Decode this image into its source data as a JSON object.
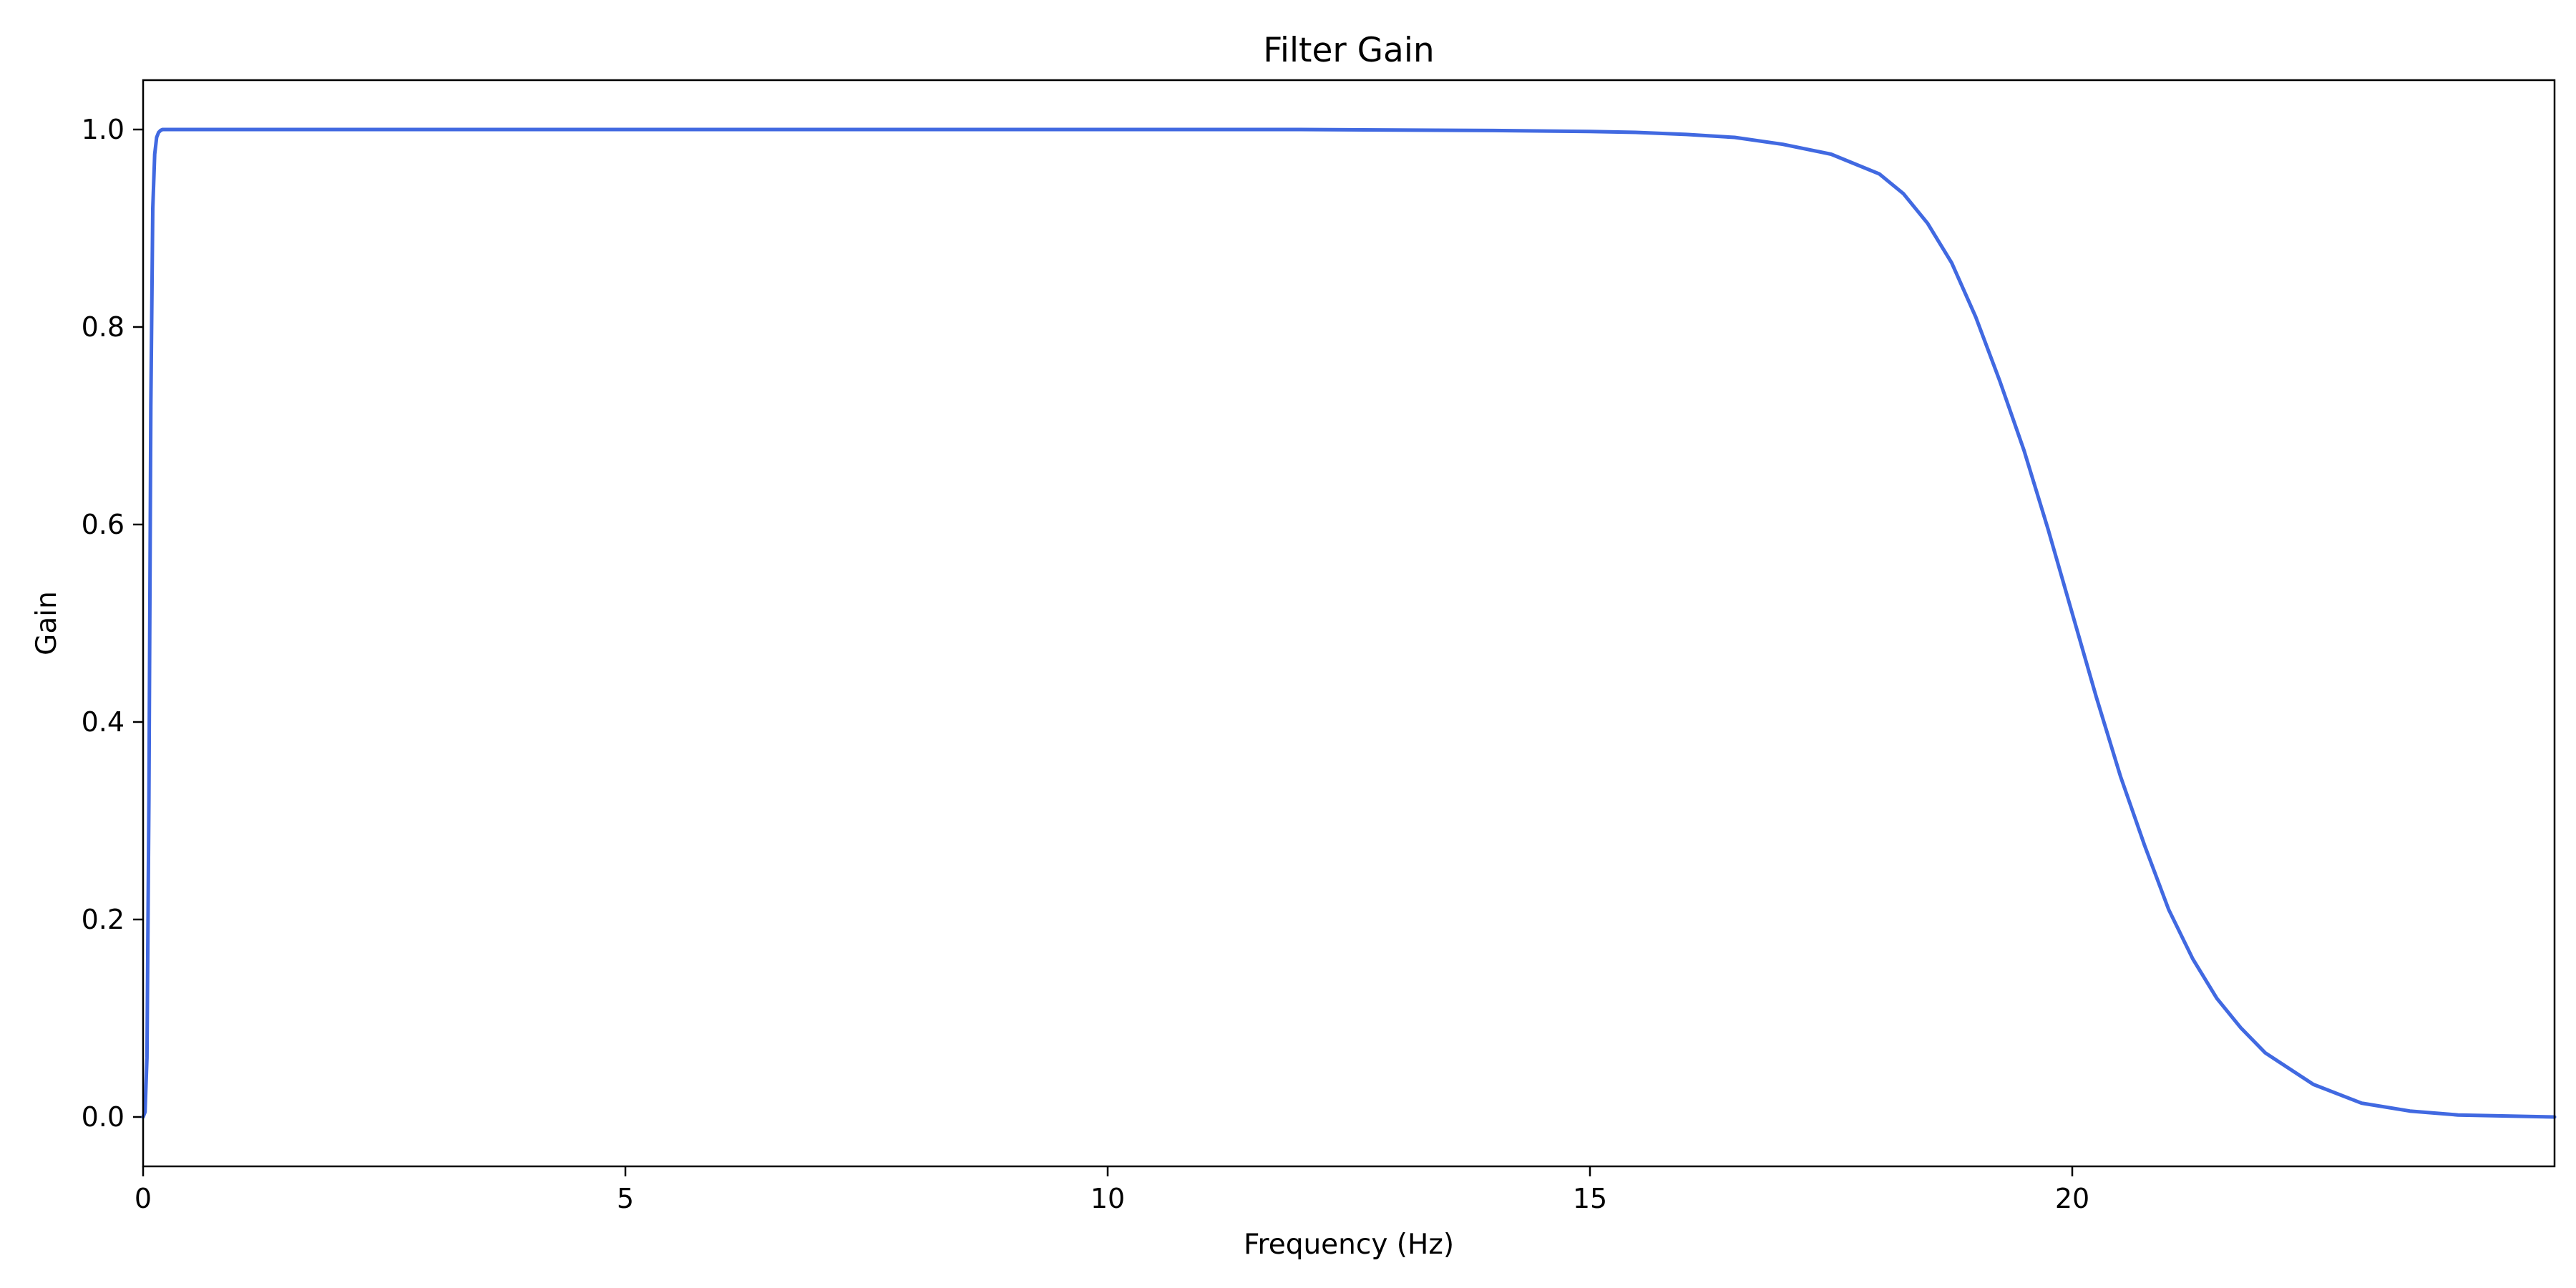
{
  "chart_data": {
    "type": "line",
    "title": "Filter Gain",
    "xlabel": "Frequency (Hz)",
    "ylabel": "Gain",
    "xlim": [
      0,
      25
    ],
    "ylim": [
      -0.05,
      1.05
    ],
    "x_ticks": [
      0,
      5,
      10,
      15,
      20
    ],
    "x_tick_labels": [
      "0",
      "5",
      "10",
      "15",
      "20"
    ],
    "y_ticks": [
      0.0,
      0.2,
      0.4,
      0.6,
      0.8,
      1.0
    ],
    "y_tick_labels": [
      "0.0",
      "0.2",
      "0.4",
      "0.6",
      "0.8",
      "1.0"
    ],
    "grid": false,
    "legend": "none",
    "series": [
      {
        "color": "#4169E1",
        "x": [
          0,
          0.02,
          0.04,
          0.06,
          0.08,
          0.1,
          0.12,
          0.14,
          0.16,
          0.18,
          0.2,
          0.25,
          0.3,
          0.5,
          1,
          2,
          4,
          6,
          8,
          10,
          12,
          14,
          15,
          15.5,
          16,
          16.5,
          17,
          17.5,
          18,
          18.25,
          18.5,
          18.75,
          19,
          19.25,
          19.5,
          19.75,
          20,
          20.25,
          20.5,
          20.75,
          21,
          21.25,
          21.5,
          21.75,
          22,
          22.5,
          23,
          23.5,
          24,
          24.5,
          25
        ],
        "y": [
          0.0,
          0.005,
          0.06,
          0.32,
          0.72,
          0.92,
          0.975,
          0.992,
          0.997,
          0.999,
          1.0,
          1.0,
          1.0,
          1.0,
          1.0,
          1.0,
          1.0,
          1.0,
          1.0,
          1.0,
          1.0,
          0.999,
          0.998,
          0.997,
          0.995,
          0.992,
          0.985,
          0.975,
          0.955,
          0.935,
          0.905,
          0.865,
          0.81,
          0.745,
          0.675,
          0.595,
          0.51,
          0.425,
          0.345,
          0.275,
          0.21,
          0.16,
          0.12,
          0.09,
          0.065,
          0.033,
          0.014,
          0.006,
          0.002,
          0.001,
          0.0
        ]
      }
    ]
  }
}
